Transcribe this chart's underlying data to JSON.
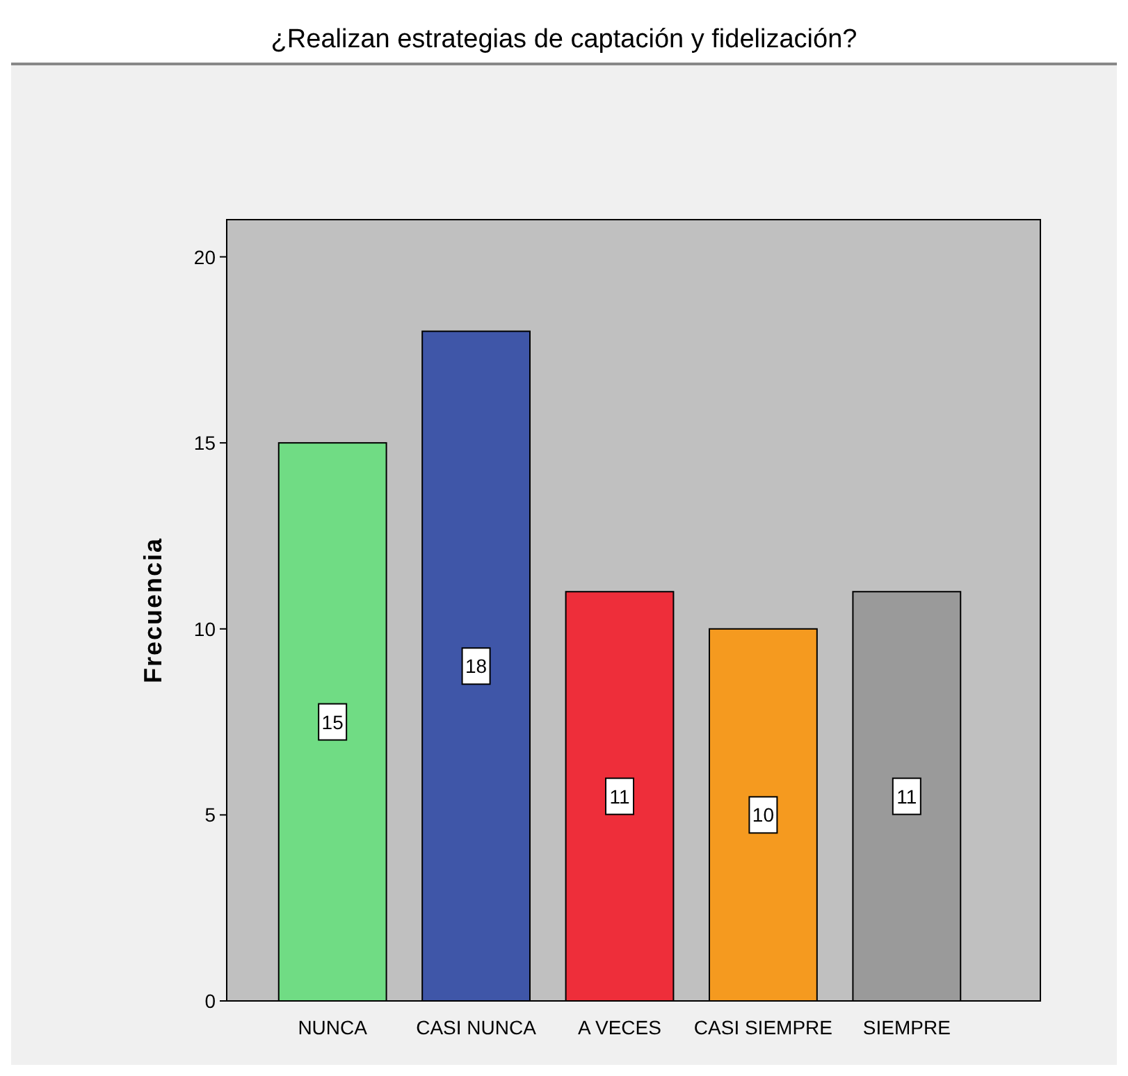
{
  "chart_data": {
    "type": "bar",
    "title": "¿Realizan estrategias de captación y fidelización?",
    "ylabel": "Frecuencia",
    "categories": [
      "NUNCA",
      "CASI NUNCA",
      "A VECES",
      "CASI SIEMPRE",
      "SIEMPRE"
    ],
    "values": [
      15,
      18,
      11,
      10,
      11
    ],
    "colors": [
      "#70dc84",
      "#3f56a8",
      "#ee2e3a",
      "#f59a1f",
      "#9a9a9a"
    ],
    "ylim": [
      0,
      21
    ],
    "yticks": [
      0,
      5,
      10,
      15,
      20
    ],
    "data_labels": true
  }
}
